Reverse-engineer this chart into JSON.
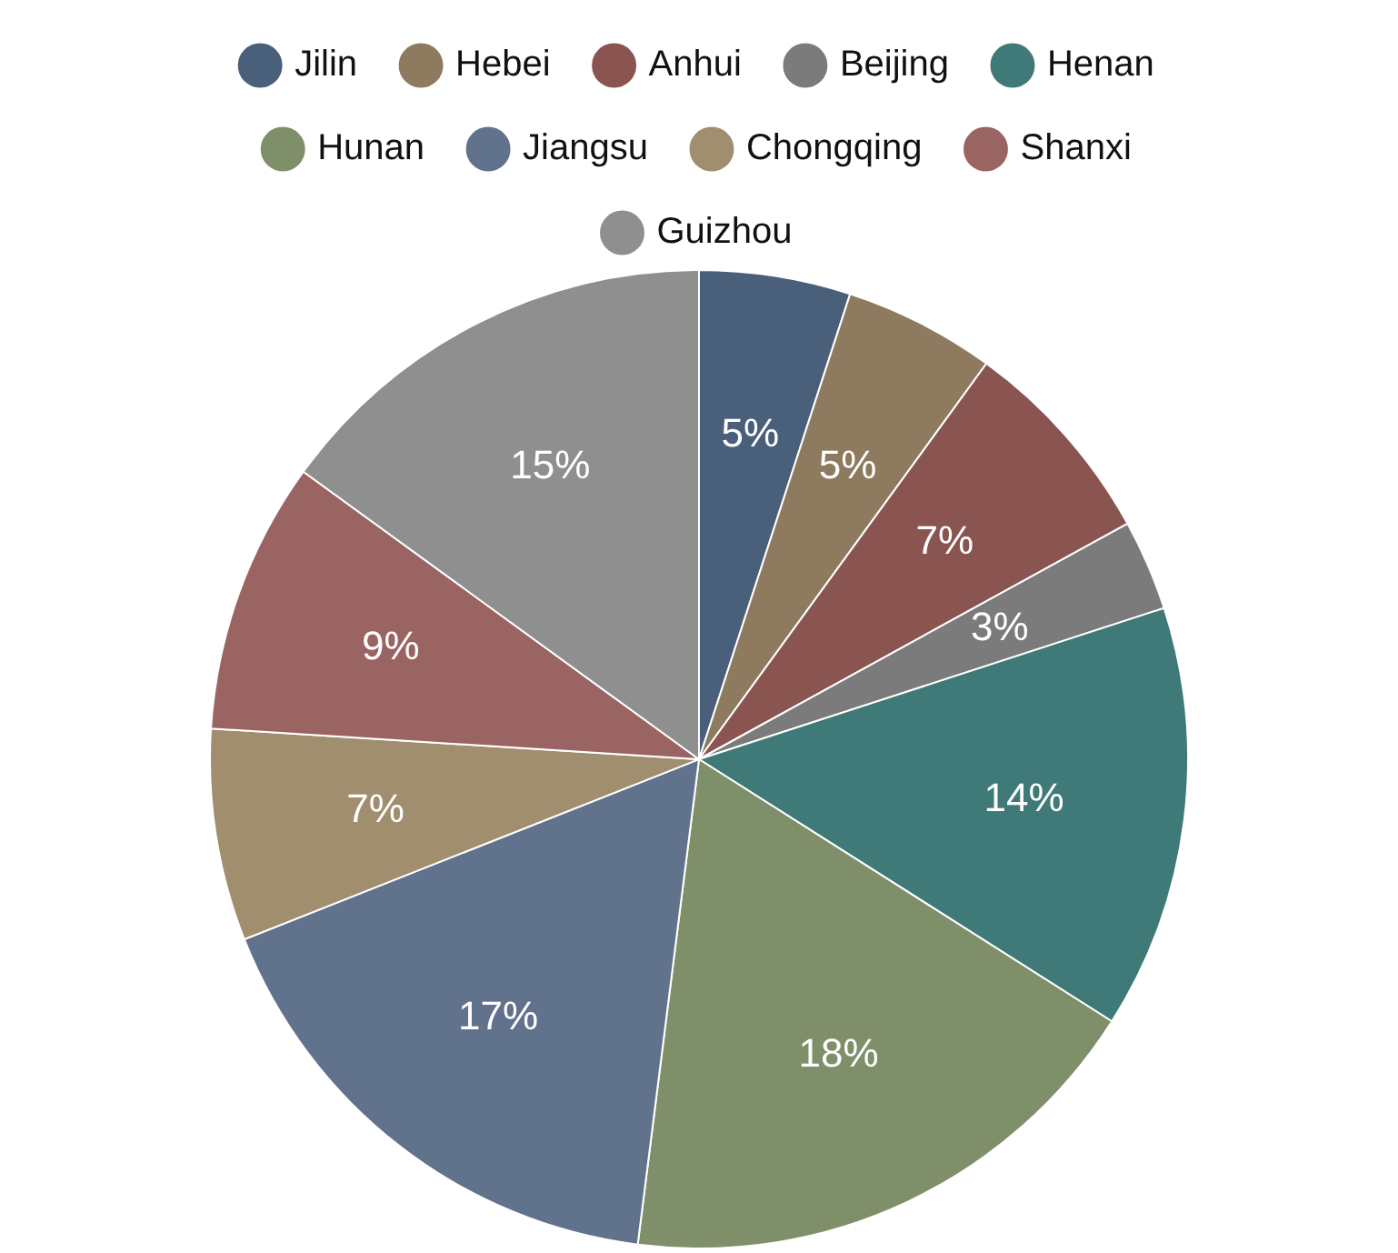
{
  "chart_data": {
    "type": "pie",
    "categories": [
      "Jilin",
      "Hebei",
      "Anhui",
      "Beijing",
      "Henan",
      "Hunan",
      "Jiangsu",
      "Chongqing",
      "Shanxi",
      "Guizhou"
    ],
    "values": [
      5,
      5,
      7,
      3,
      14,
      18,
      17,
      7,
      9,
      15
    ],
    "colors": [
      "#4a5f7a",
      "#8e7a5e",
      "#8a5550",
      "#7b7b7b",
      "#3f7a78",
      "#7f8f6a",
      "#61728c",
      "#a08e6e",
      "#9a6462",
      "#8f8f8f"
    ],
    "value_labels": [
      "5%",
      "5%",
      "7%",
      "3%",
      "14%",
      "18%",
      "17%",
      "7%",
      "9%",
      "15%"
    ],
    "legend": "top"
  }
}
